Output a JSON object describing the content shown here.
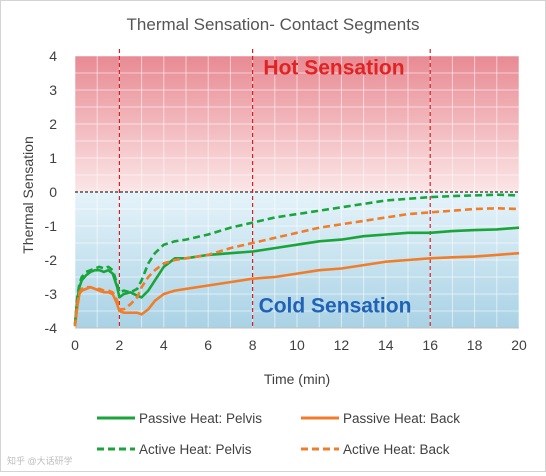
{
  "watermark": "知乎 @大话研学",
  "chart_data": {
    "type": "line",
    "title": "Thermal Sensation- Contact Segments",
    "xlabel": "Time (min)",
    "ylabel": "Thermal Sensation",
    "xlim": [
      0,
      20
    ],
    "ylim": [
      -4,
      4
    ],
    "x_ticks": [
      "0",
      "2",
      "4",
      "6",
      "8",
      "10",
      "12",
      "14",
      "16",
      "18",
      "20"
    ],
    "y_ticks": [
      "-4",
      "-3",
      "-2",
      "-1",
      "0",
      "1",
      "2",
      "3",
      "4"
    ],
    "grid": true,
    "legend_position": "bottom",
    "bands": [
      {
        "label": "Hot Sensation",
        "from": 0,
        "to": 4,
        "color_top": "#e88a93",
        "color_bottom": "#fbe6e7",
        "label_color": "#e02424"
      },
      {
        "label": "Cold Sensation",
        "from": -4,
        "to": 0,
        "color_top": "#e6f3fa",
        "color_bottom": "#a9d2e5",
        "label_color": "#1f62b6"
      }
    ],
    "reference_lines": [
      {
        "axis": "y",
        "value": 0,
        "color": "#000000",
        "style": "dashed"
      },
      {
        "axis": "x",
        "value": 2,
        "color": "#d62020",
        "style": "dashed"
      },
      {
        "axis": "x",
        "value": 8,
        "color": "#d62020",
        "style": "dashed"
      },
      {
        "axis": "x",
        "value": 16,
        "color": "#d62020",
        "style": "dashed"
      }
    ],
    "series": [
      {
        "name": "Passive Heat: Pelvis",
        "color": "#1aa53a",
        "style": "solid",
        "x": [
          0,
          0.1,
          0.2,
          0.3,
          0.5,
          0.7,
          0.9,
          1.1,
          1.3,
          1.5,
          1.7,
          1.9,
          2.0,
          2.2,
          2.5,
          2.8,
          3.0,
          3.3,
          3.6,
          4.0,
          4.5,
          5,
          6,
          7,
          8,
          9,
          10,
          11,
          12,
          13,
          14,
          15,
          16,
          17,
          18,
          19,
          20
        ],
        "y": [
          -3.9,
          -3.2,
          -2.8,
          -2.6,
          -2.45,
          -2.35,
          -2.3,
          -2.3,
          -2.35,
          -2.3,
          -2.4,
          -2.8,
          -3.1,
          -3.0,
          -2.95,
          -3.05,
          -3.1,
          -2.9,
          -2.6,
          -2.2,
          -1.95,
          -1.95,
          -1.85,
          -1.8,
          -1.75,
          -1.65,
          -1.55,
          -1.45,
          -1.4,
          -1.3,
          -1.25,
          -1.2,
          -1.2,
          -1.15,
          -1.12,
          -1.1,
          -1.05
        ]
      },
      {
        "name": "Passive Heat: Back",
        "color": "#f07d2a",
        "style": "solid",
        "x": [
          0,
          0.1,
          0.2,
          0.3,
          0.5,
          0.7,
          0.9,
          1.1,
          1.3,
          1.5,
          1.7,
          1.9,
          2.0,
          2.2,
          2.5,
          2.8,
          3.0,
          3.3,
          3.6,
          4.0,
          4.5,
          5,
          6,
          7,
          8,
          9,
          10,
          11,
          12,
          13,
          14,
          15,
          16,
          17,
          18,
          19,
          20
        ],
        "y": [
          -3.95,
          -3.4,
          -3.0,
          -2.9,
          -2.85,
          -2.8,
          -2.85,
          -2.9,
          -2.95,
          -2.95,
          -3.0,
          -3.3,
          -3.5,
          -3.55,
          -3.55,
          -3.55,
          -3.6,
          -3.45,
          -3.2,
          -3.0,
          -2.9,
          -2.85,
          -2.75,
          -2.65,
          -2.55,
          -2.5,
          -2.4,
          -2.3,
          -2.25,
          -2.15,
          -2.05,
          -2.0,
          -1.95,
          -1.92,
          -1.9,
          -1.85,
          -1.8
        ]
      },
      {
        "name": "Active Heat: Pelvis",
        "color": "#1aa53a",
        "style": "dashed",
        "x": [
          0,
          0.1,
          0.2,
          0.3,
          0.5,
          0.7,
          0.9,
          1.1,
          1.3,
          1.5,
          1.7,
          1.9,
          2.0,
          2.2,
          2.5,
          2.8,
          3.0,
          3.3,
          3.6,
          4.0,
          4.5,
          5,
          6,
          7,
          8,
          9,
          10,
          11,
          12,
          13,
          14,
          15,
          16,
          17,
          18,
          19,
          20
        ],
        "y": [
          -3.9,
          -3.1,
          -2.7,
          -2.5,
          -2.35,
          -2.3,
          -2.25,
          -2.2,
          -2.25,
          -2.2,
          -2.3,
          -2.7,
          -2.95,
          -2.9,
          -2.95,
          -2.85,
          -2.6,
          -2.1,
          -1.8,
          -1.55,
          -1.45,
          -1.4,
          -1.25,
          -1.05,
          -0.9,
          -0.75,
          -0.65,
          -0.55,
          -0.45,
          -0.35,
          -0.25,
          -0.2,
          -0.15,
          -0.12,
          -0.1,
          -0.08,
          -0.1
        ]
      },
      {
        "name": "Active Heat: Back",
        "color": "#f07d2a",
        "style": "dashed",
        "x": [
          0,
          0.1,
          0.2,
          0.3,
          0.5,
          0.7,
          0.9,
          1.1,
          1.3,
          1.5,
          1.7,
          1.9,
          2.0,
          2.2,
          2.5,
          2.8,
          3.0,
          3.3,
          3.6,
          4.0,
          4.5,
          5,
          6,
          7,
          8,
          9,
          10,
          11,
          12,
          13,
          14,
          15,
          16,
          17,
          18,
          19,
          20
        ],
        "y": [
          -3.95,
          -3.3,
          -2.95,
          -2.85,
          -2.8,
          -2.8,
          -2.85,
          -2.85,
          -2.9,
          -2.9,
          -2.95,
          -3.2,
          -3.45,
          -3.45,
          -3.3,
          -3.1,
          -2.8,
          -2.5,
          -2.3,
          -2.1,
          -2.0,
          -1.95,
          -1.85,
          -1.65,
          -1.5,
          -1.35,
          -1.2,
          -1.05,
          -0.95,
          -0.85,
          -0.75,
          -0.65,
          -0.6,
          -0.55,
          -0.5,
          -0.48,
          -0.5
        ]
      }
    ]
  }
}
